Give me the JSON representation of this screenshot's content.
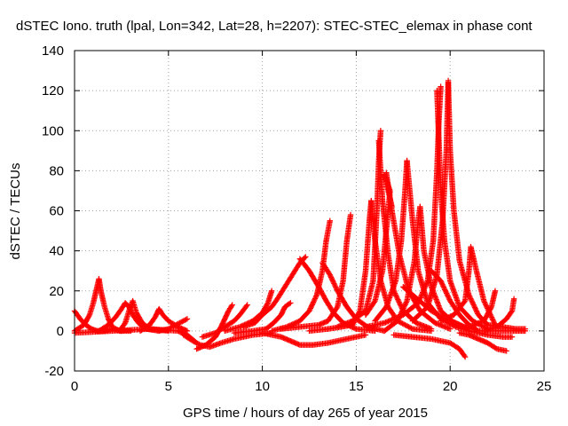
{
  "chart_data": {
    "type": "scatter",
    "title": "dSTEC Iono. truth (lpal, Lon=342, Lat=28, h=2207): STEC-STEC_elemax in phase cont",
    "xlabel": "GPS time / hours of day 265 of year 2015",
    "ylabel": "dSTEC  / TECUs",
    "xlim": [
      0,
      25
    ],
    "ylim": [
      -20,
      140
    ],
    "xticks": [
      "0",
      "5",
      "10",
      "15",
      "20",
      "25"
    ],
    "yticks": [
      "-20",
      "0",
      "20",
      "40",
      "60",
      "80",
      "100",
      "120",
      "140"
    ],
    "grid": true,
    "marker": "plus",
    "color": "#ff0000",
    "series": [
      {
        "points": [
          [
            0.0,
            10
          ],
          [
            0.3,
            6
          ],
          [
            0.6,
            3
          ],
          [
            0.9,
            1
          ],
          [
            1.2,
            0
          ],
          [
            1.6,
            0
          ],
          [
            2.0,
            1
          ],
          [
            2.5,
            0
          ]
        ]
      },
      {
        "points": [
          [
            0.0,
            0
          ],
          [
            0.5,
            3
          ],
          [
            0.8,
            8
          ],
          [
            1.0,
            14
          ],
          [
            1.2,
            22
          ],
          [
            1.3,
            26
          ],
          [
            1.4,
            20
          ],
          [
            1.6,
            12
          ],
          [
            1.8,
            6
          ],
          [
            2.0,
            2
          ],
          [
            2.4,
            0
          ],
          [
            3.0,
            0
          ]
        ]
      },
      {
        "points": [
          [
            1.3,
            0
          ],
          [
            1.8,
            3
          ],
          [
            2.2,
            7
          ],
          [
            2.5,
            11
          ],
          [
            2.7,
            14
          ],
          [
            2.9,
            12
          ],
          [
            3.1,
            8
          ],
          [
            3.4,
            4
          ],
          [
            3.8,
            1
          ],
          [
            4.5,
            0
          ]
        ]
      },
      {
        "points": [
          [
            2.4,
            0
          ],
          [
            2.7,
            4
          ],
          [
            2.9,
            10
          ],
          [
            3.1,
            15
          ],
          [
            3.3,
            9
          ],
          [
            3.6,
            4
          ],
          [
            4.0,
            1
          ],
          [
            5.0,
            0
          ]
        ]
      },
      {
        "points": [
          [
            3.5,
            0
          ],
          [
            4.0,
            3
          ],
          [
            4.3,
            7
          ],
          [
            4.5,
            11
          ],
          [
            4.7,
            8
          ],
          [
            5.0,
            5
          ],
          [
            5.5,
            2
          ],
          [
            6.0,
            0
          ]
        ]
      },
      {
        "points": [
          [
            4.5,
            0
          ],
          [
            5.0,
            1
          ],
          [
            5.4,
            3
          ],
          [
            5.8,
            5
          ],
          [
            6.0,
            6
          ]
        ]
      },
      {
        "points": [
          [
            0.0,
            -1
          ],
          [
            2.0,
            0
          ],
          [
            4.0,
            1
          ],
          [
            5.5,
            0
          ],
          [
            6.0,
            -2
          ],
          [
            6.5,
            -6
          ]
        ]
      },
      {
        "points": [
          [
            5.8,
            -2
          ],
          [
            6.3,
            -5
          ],
          [
            6.7,
            -7
          ],
          [
            7.2,
            -8
          ],
          [
            7.8,
            -6
          ],
          [
            8.5,
            -4
          ],
          [
            9.5,
            -2
          ],
          [
            10.5,
            -1
          ]
        ]
      },
      {
        "points": [
          [
            6.5,
            -9
          ],
          [
            7.0,
            -7
          ],
          [
            7.5,
            -3
          ],
          [
            7.8,
            2
          ],
          [
            8.0,
            6
          ],
          [
            8.2,
            10
          ],
          [
            8.4,
            13
          ]
        ]
      },
      {
        "points": [
          [
            6.8,
            -3
          ],
          [
            7.5,
            -1
          ],
          [
            8.0,
            2
          ],
          [
            8.5,
            5
          ],
          [
            8.8,
            8
          ],
          [
            9.2,
            13
          ]
        ]
      },
      {
        "points": [
          [
            8.0,
            0
          ],
          [
            8.8,
            2
          ],
          [
            9.5,
            5
          ],
          [
            10.0,
            9
          ],
          [
            10.3,
            14
          ],
          [
            10.5,
            20
          ]
        ]
      },
      {
        "points": [
          [
            8.5,
            -1
          ],
          [
            9.5,
            0
          ],
          [
            10.2,
            1
          ],
          [
            10.6,
            4
          ],
          [
            11.0,
            8
          ],
          [
            11.2,
            12
          ],
          [
            11.5,
            14
          ]
        ]
      },
      {
        "points": [
          [
            9.0,
            2
          ],
          [
            9.6,
            4
          ],
          [
            10.0,
            8
          ],
          [
            10.5,
            12
          ],
          [
            10.8,
            16
          ],
          [
            11.2,
            22
          ],
          [
            11.6,
            28
          ],
          [
            12.0,
            34
          ],
          [
            12.3,
            37
          ]
        ]
      },
      {
        "points": [
          [
            10.0,
            -1
          ],
          [
            11.0,
            -3
          ],
          [
            11.5,
            -5
          ],
          [
            12.0,
            -7
          ],
          [
            12.7,
            -7
          ],
          [
            13.5,
            -6
          ],
          [
            14.5,
            -4
          ],
          [
            15.5,
            -2
          ]
        ]
      },
      {
        "points": [
          [
            10.5,
            0
          ],
          [
            11.3,
            2
          ],
          [
            12.0,
            5
          ],
          [
            12.5,
            10
          ],
          [
            12.9,
            18
          ],
          [
            13.2,
            30
          ],
          [
            13.4,
            45
          ],
          [
            13.6,
            55
          ]
        ]
      },
      {
        "points": [
          [
            11.0,
            1
          ],
          [
            12.0,
            2
          ],
          [
            13.0,
            3
          ],
          [
            13.5,
            5
          ],
          [
            14.0,
            12
          ],
          [
            14.3,
            25
          ],
          [
            14.5,
            45
          ],
          [
            14.7,
            58
          ]
        ]
      },
      {
        "points": [
          [
            12.0,
            36
          ],
          [
            12.5,
            30
          ],
          [
            13.0,
            22
          ],
          [
            13.4,
            15
          ],
          [
            13.8,
            9
          ],
          [
            14.3,
            4
          ],
          [
            15.0,
            1
          ],
          [
            16.0,
            0
          ]
        ]
      },
      {
        "points": [
          [
            13.2,
            34
          ],
          [
            13.6,
            28
          ],
          [
            14.0,
            20
          ],
          [
            14.5,
            12
          ],
          [
            15.0,
            6
          ],
          [
            15.6,
            2
          ],
          [
            16.5,
            0
          ]
        ]
      },
      {
        "points": [
          [
            12.5,
            0
          ],
          [
            13.5,
            1
          ],
          [
            14.2,
            2
          ],
          [
            14.8,
            3
          ],
          [
            15.2,
            10
          ],
          [
            15.5,
            30
          ],
          [
            15.7,
            55
          ],
          [
            15.8,
            65
          ]
        ]
      },
      {
        "points": [
          [
            14.0,
            2
          ],
          [
            14.8,
            5
          ],
          [
            15.5,
            10
          ],
          [
            15.9,
            25
          ],
          [
            16.1,
            60
          ],
          [
            16.2,
            85
          ],
          [
            16.3,
            100
          ]
        ]
      },
      {
        "points": [
          [
            15.8,
            65
          ],
          [
            16.0,
            45
          ],
          [
            16.3,
            25
          ],
          [
            16.7,
            12
          ],
          [
            17.2,
            5
          ],
          [
            18.0,
            1
          ],
          [
            19.0,
            0
          ]
        ]
      },
      {
        "points": [
          [
            16.2,
            95
          ],
          [
            16.4,
            65
          ],
          [
            16.7,
            38
          ],
          [
            17.0,
            20
          ],
          [
            17.5,
            10
          ],
          [
            18.2,
            4
          ],
          [
            19.0,
            1
          ]
        ]
      },
      {
        "points": [
          [
            15.5,
            8
          ],
          [
            16.0,
            15
          ],
          [
            16.4,
            30
          ],
          [
            16.6,
            50
          ],
          [
            16.8,
            70
          ],
          [
            16.5,
            78
          ],
          [
            16.9,
            62
          ]
        ]
      },
      {
        "points": [
          [
            16.6,
            79
          ],
          [
            16.9,
            60
          ],
          [
            17.3,
            38
          ],
          [
            17.8,
            20
          ],
          [
            18.4,
            10
          ],
          [
            19.2,
            4
          ],
          [
            20.0,
            1
          ]
        ]
      },
      {
        "points": [
          [
            16.0,
            5
          ],
          [
            16.6,
            12
          ],
          [
            17.1,
            25
          ],
          [
            17.4,
            45
          ],
          [
            17.6,
            70
          ],
          [
            17.7,
            85
          ]
        ]
      },
      {
        "points": [
          [
            17.7,
            85
          ],
          [
            18.0,
            55
          ],
          [
            18.3,
            30
          ],
          [
            18.8,
            14
          ],
          [
            19.5,
            6
          ],
          [
            20.3,
            2
          ],
          [
            21.0,
            0
          ]
        ]
      },
      {
        "points": [
          [
            16.5,
            0
          ],
          [
            17.2,
            5
          ],
          [
            17.7,
            15
          ],
          [
            18.1,
            35
          ],
          [
            18.3,
            55
          ],
          [
            18.4,
            62
          ]
        ]
      },
      {
        "points": [
          [
            18.4,
            62
          ],
          [
            18.6,
            40
          ],
          [
            19.0,
            22
          ],
          [
            19.5,
            10
          ],
          [
            20.2,
            4
          ],
          [
            21.0,
            1
          ]
        ]
      },
      {
        "points": [
          [
            17.5,
            22
          ],
          [
            18.0,
            18
          ],
          [
            18.5,
            14
          ],
          [
            19.0,
            10
          ],
          [
            19.6,
            7
          ],
          [
            20.3,
            4
          ],
          [
            21.0,
            1
          ]
        ]
      },
      {
        "points": [
          [
            15.5,
            2
          ],
          [
            16.5,
            4
          ],
          [
            17.5,
            8
          ],
          [
            18.3,
            14
          ],
          [
            18.8,
            25
          ],
          [
            19.1,
            45
          ],
          [
            19.3,
            80
          ],
          [
            19.4,
            105
          ],
          [
            19.5,
            122
          ]
        ]
      },
      {
        "points": [
          [
            19.3,
            120
          ],
          [
            19.4,
            95
          ],
          [
            19.5,
            70
          ],
          [
            19.7,
            45
          ],
          [
            20.0,
            25
          ],
          [
            20.5,
            12
          ],
          [
            21.2,
            5
          ],
          [
            22.0,
            1
          ]
        ]
      },
      {
        "points": [
          [
            18.0,
            5
          ],
          [
            18.8,
            12
          ],
          [
            19.3,
            28
          ],
          [
            19.6,
            55
          ],
          [
            19.8,
            90
          ],
          [
            19.9,
            125
          ]
        ]
      },
      {
        "points": [
          [
            19.9,
            124
          ],
          [
            20.0,
            90
          ],
          [
            20.2,
            60
          ],
          [
            20.5,
            35
          ],
          [
            21.0,
            18
          ],
          [
            21.5,
            8
          ],
          [
            22.0,
            3
          ]
        ]
      },
      {
        "points": [
          [
            19.0,
            30
          ],
          [
            19.5,
            25
          ],
          [
            20.0,
            15
          ],
          [
            20.5,
            8
          ],
          [
            21.0,
            3
          ],
          [
            21.5,
            0
          ]
        ]
      },
      {
        "points": [
          [
            17.0,
            -2
          ],
          [
            18.0,
            -3
          ],
          [
            19.0,
            -4
          ],
          [
            20.0,
            -6
          ],
          [
            20.5,
            -9
          ],
          [
            20.8,
            -13
          ]
        ]
      },
      {
        "points": [
          [
            19.5,
            5
          ],
          [
            20.2,
            8
          ],
          [
            20.8,
            15
          ],
          [
            21.0,
            30
          ],
          [
            21.1,
            42
          ],
          [
            21.4,
            30
          ],
          [
            21.8,
            15
          ],
          [
            22.4,
            3
          ]
        ]
      },
      {
        "points": [
          [
            20.5,
            -1
          ],
          [
            21.0,
            -2
          ],
          [
            21.5,
            -4
          ],
          [
            22.0,
            -6
          ],
          [
            22.5,
            -9
          ],
          [
            23.0,
            -10
          ]
        ]
      },
      {
        "points": [
          [
            21.0,
            2
          ],
          [
            21.8,
            5
          ],
          [
            22.2,
            12
          ],
          [
            22.4,
            20
          ]
        ]
      },
      {
        "points": [
          [
            21.0,
            0
          ],
          [
            22.0,
            -2
          ],
          [
            22.8,
            -3
          ],
          [
            23.3,
            -3
          ]
        ]
      },
      {
        "points": [
          [
            21.8,
            0
          ],
          [
            22.5,
            2
          ],
          [
            23.0,
            6
          ],
          [
            23.3,
            10
          ],
          [
            23.4,
            16
          ]
        ]
      },
      {
        "points": [
          [
            21.5,
            0
          ],
          [
            22.5,
            0
          ],
          [
            23.3,
            0
          ],
          [
            24.0,
            0
          ]
        ]
      },
      {
        "points": [
          [
            22.0,
            3
          ],
          [
            22.8,
            2
          ],
          [
            23.5,
            1
          ],
          [
            24.0,
            1
          ]
        ]
      }
    ]
  }
}
